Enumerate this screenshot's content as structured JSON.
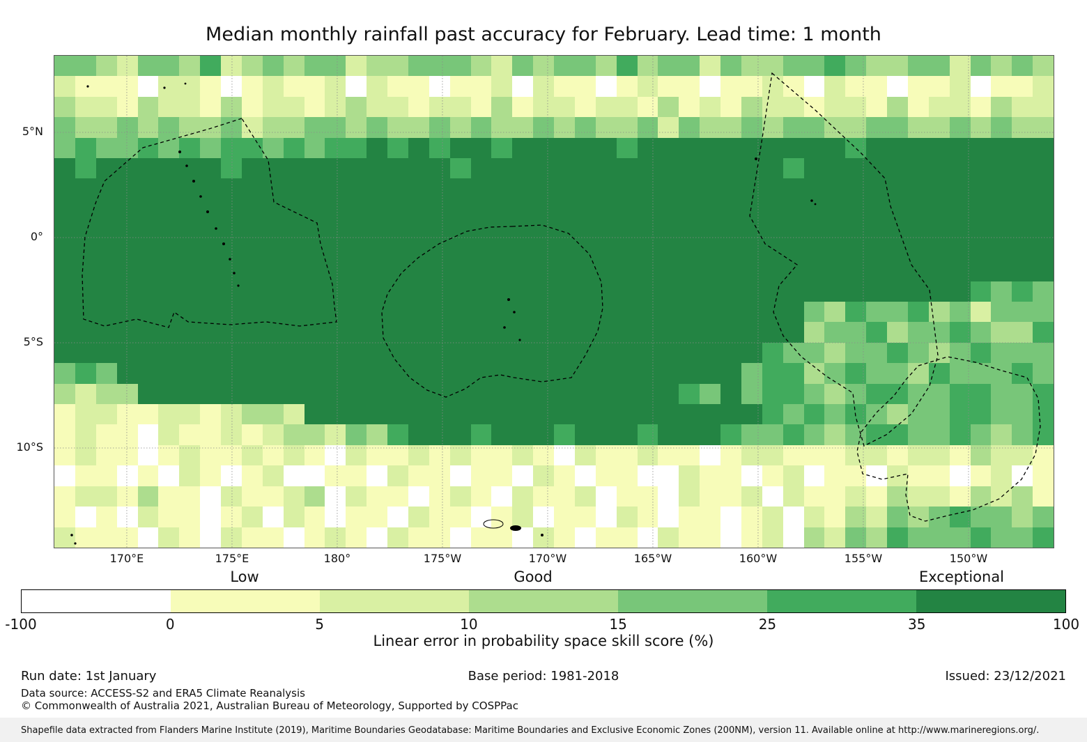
{
  "title": "Median monthly rainfall past accuracy for February. Lead time: 1 month",
  "chart_data": {
    "type": "heatmap",
    "title": "Median monthly rainfall past accuracy for February. Lead time: 1 month",
    "x_tick_labels": [
      "170°E",
      "175°E",
      "180°",
      "175°W",
      "170°W",
      "165°W",
      "160°W",
      "155°W",
      "150°W"
    ],
    "y_tick_labels": [
      "5°N",
      "0°",
      "5°S",
      "10°S"
    ],
    "grid_on": true,
    "colorbar": {
      "tick_labels": [
        "-100",
        "0",
        "5",
        "10",
        "15",
        "25",
        "35",
        "100"
      ],
      "value_bins": [
        -100,
        0,
        5,
        10,
        15,
        25,
        35,
        100
      ],
      "segment_colors": [
        "#ffffff",
        "#f7fcb9",
        "#d9f0a3",
        "#addd8e",
        "#78c679",
        "#41ab5d",
        "#238443"
      ],
      "quality_labels": [
        "Low",
        "Good",
        "Exceptional"
      ],
      "caption": "Linear error in probability space skill score (%)"
    },
    "grid": {
      "rows": 24,
      "cols": 48,
      "legend": "each digit 0-6 indexes colorbar.segment_colors; bins: <0, 0-5, 5-10, 10-15, 15-25, 25-35, 35-100 (%)",
      "cells": [
        [
          "44324435",
          "23434423",
          "34443243",
          "44353442",
          "43344543",
          "34424343"
        ],
        [
          "21110221",
          "01211202",
          "11011202",
          "11012110",
          "11210211",
          "01120112"
        ],
        [
          "32213221",
          "31221232",
          "21221312",
          "21221312",
          "13221221",
          "31221322"
        ],
        [
          "43343433",
          "42334434",
          "33434334",
          "34334243",
          "34344334",
          "43343433"
        ],
        [
          "45445454",
          "55454556",
          "56566566",
          "66656666",
          "66666656",
          "66666666"
        ],
        [
          "65666666",
          "56666666",
          "66656666",
          "66666666",
          "66656666",
          "66666666"
        ],
        [
          "66666666",
          "66666666",
          "66666666",
          "66666666",
          "66666666",
          "66666666"
        ],
        [
          "66666666",
          "66666666",
          "66666666",
          "66666666",
          "66666666",
          "66666666"
        ],
        [
          "66666666",
          "66666666",
          "66666666",
          "66666666",
          "66666666",
          "66666666"
        ],
        [
          "66666666",
          "66666666",
          "66666666",
          "66666666",
          "66666666",
          "66666666"
        ],
        [
          "66666666",
          "66666666",
          "66666666",
          "66666666",
          "66666666",
          "66666666"
        ],
        [
          "66666666",
          "66666666",
          "66666666",
          "66666666",
          "66666666",
          "66665454"
        ],
        [
          "66666666",
          "66666666",
          "66666666",
          "66666666",
          "66664354",
          "45342444"
        ],
        [
          "66666666",
          "66666666",
          "66666666",
          "66666666",
          "66663445",
          "34454335"
        ],
        [
          "66666666",
          "66666666",
          "66666666",
          "66666666",
          "66544344",
          "54345444"
        ],
        [
          "45466666",
          "66666666",
          "66666666",
          "66666666",
          "64553454",
          "43544454"
        ],
        [
          "32336666",
          "66666666",
          "66666666",
          "66666654",
          "64554345",
          "54455445"
        ],
        [
          "12211221",
          "23326666",
          "66666666",
          "66666666",
          "66545454",
          "34455445"
        ],
        [
          "12110211",
          "21233243",
          "56665666",
          "56665666",
          "54454345",
          "54454345"
        ],
        [
          "12110121",
          "12121021",
          "12121121",
          "02112110",
          "12211122",
          "12213221"
        ],
        [
          "01101021",
          "01200110",
          "21101102",
          "10110021",
          "10120110",
          "21101201"
        ],
        [
          "12213110",
          "21123021",
          "10121021",
          "12011021",
          "12021121",
          "32213231"
        ],
        [
          "10102110",
          "12021011",
          "02110120",
          "11021011",
          "01202132",
          "43454434"
        ],
        [
          "21110210",
          "21101210",
          "21101102",
          "10110211",
          "01203243",
          "54445445"
        ]
      ]
    }
  },
  "footer": {
    "run_date": "Run date: 1st January",
    "base_period": "Base period: 1981-2018",
    "issued": "Issued: 23/12/2021",
    "data_source": "Data source: ACCESS-S2 and ERA5 Climate Reanalysis",
    "copyright": "© Commonwealth of Australia 2021, Australian Bureau of Meteorology, Supported by COSPPac",
    "shapefile_note": "Shapefile data extracted from Flanders Marine Institute (2019), Maritime Boundaries Geodatabase: Maritime Boundaries and Exclusive Economic Zones (200NM), version 11. Available online at http://www.marineregions.org/."
  }
}
